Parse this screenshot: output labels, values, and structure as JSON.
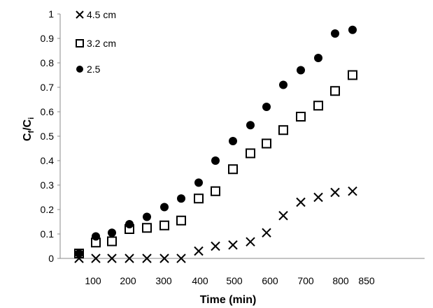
{
  "chart_data": {
    "type": "scatter",
    "xlabel": "Time (min)",
    "ylabel": {
      "main": "C",
      "sub1": "f",
      "sep": "/",
      "main2": "C",
      "sub2": "i"
    },
    "ylim": [
      0,
      1
    ],
    "x_tick_labels": [
      "100",
      "200",
      "300",
      "400",
      "500",
      "600",
      "700",
      "800",
      "850"
    ],
    "y_tick_labels": [
      "0",
      "0.1",
      "0.2",
      "0.3",
      "0.4",
      "0.5",
      "0.6",
      "0.7",
      "0.8",
      "0.9",
      "1"
    ],
    "legend_position": "top-left",
    "series": [
      {
        "name": "4.5 cm",
        "marker": "x",
        "color": "#000000",
        "x": [
          70,
          115,
          160,
          205,
          255,
          300,
          345,
          395,
          445,
          495,
          545,
          590,
          635,
          680,
          720,
          770,
          815
        ],
        "y": [
          0.0,
          0.0,
          0.0,
          0.0,
          0.0,
          0.0,
          0.0,
          0.03,
          0.05,
          0.055,
          0.068,
          0.105,
          0.175,
          0.23,
          0.25,
          0.27,
          0.275
        ]
      },
      {
        "name": "3.2 cm",
        "marker": "open-square",
        "color": "#000000",
        "x": [
          70,
          115,
          160,
          205,
          255,
          300,
          345,
          395,
          445,
          495,
          545,
          590,
          635,
          680,
          720,
          770,
          815
        ],
        "y": [
          0.02,
          0.065,
          0.07,
          0.12,
          0.125,
          0.135,
          0.155,
          0.245,
          0.275,
          0.365,
          0.43,
          0.47,
          0.525,
          0.58,
          0.625,
          0.685,
          0.75
        ]
      },
      {
        "name": "2.5",
        "marker": "filled-circle",
        "color": "#000000",
        "x": [
          70,
          115,
          160,
          205,
          255,
          300,
          345,
          395,
          445,
          495,
          545,
          590,
          635,
          680,
          720,
          770,
          815
        ],
        "y": [
          0.02,
          0.09,
          0.105,
          0.14,
          0.17,
          0.21,
          0.245,
          0.31,
          0.4,
          0.48,
          0.545,
          0.62,
          0.71,
          0.77,
          0.82,
          0.92,
          0.935
        ]
      }
    ]
  }
}
